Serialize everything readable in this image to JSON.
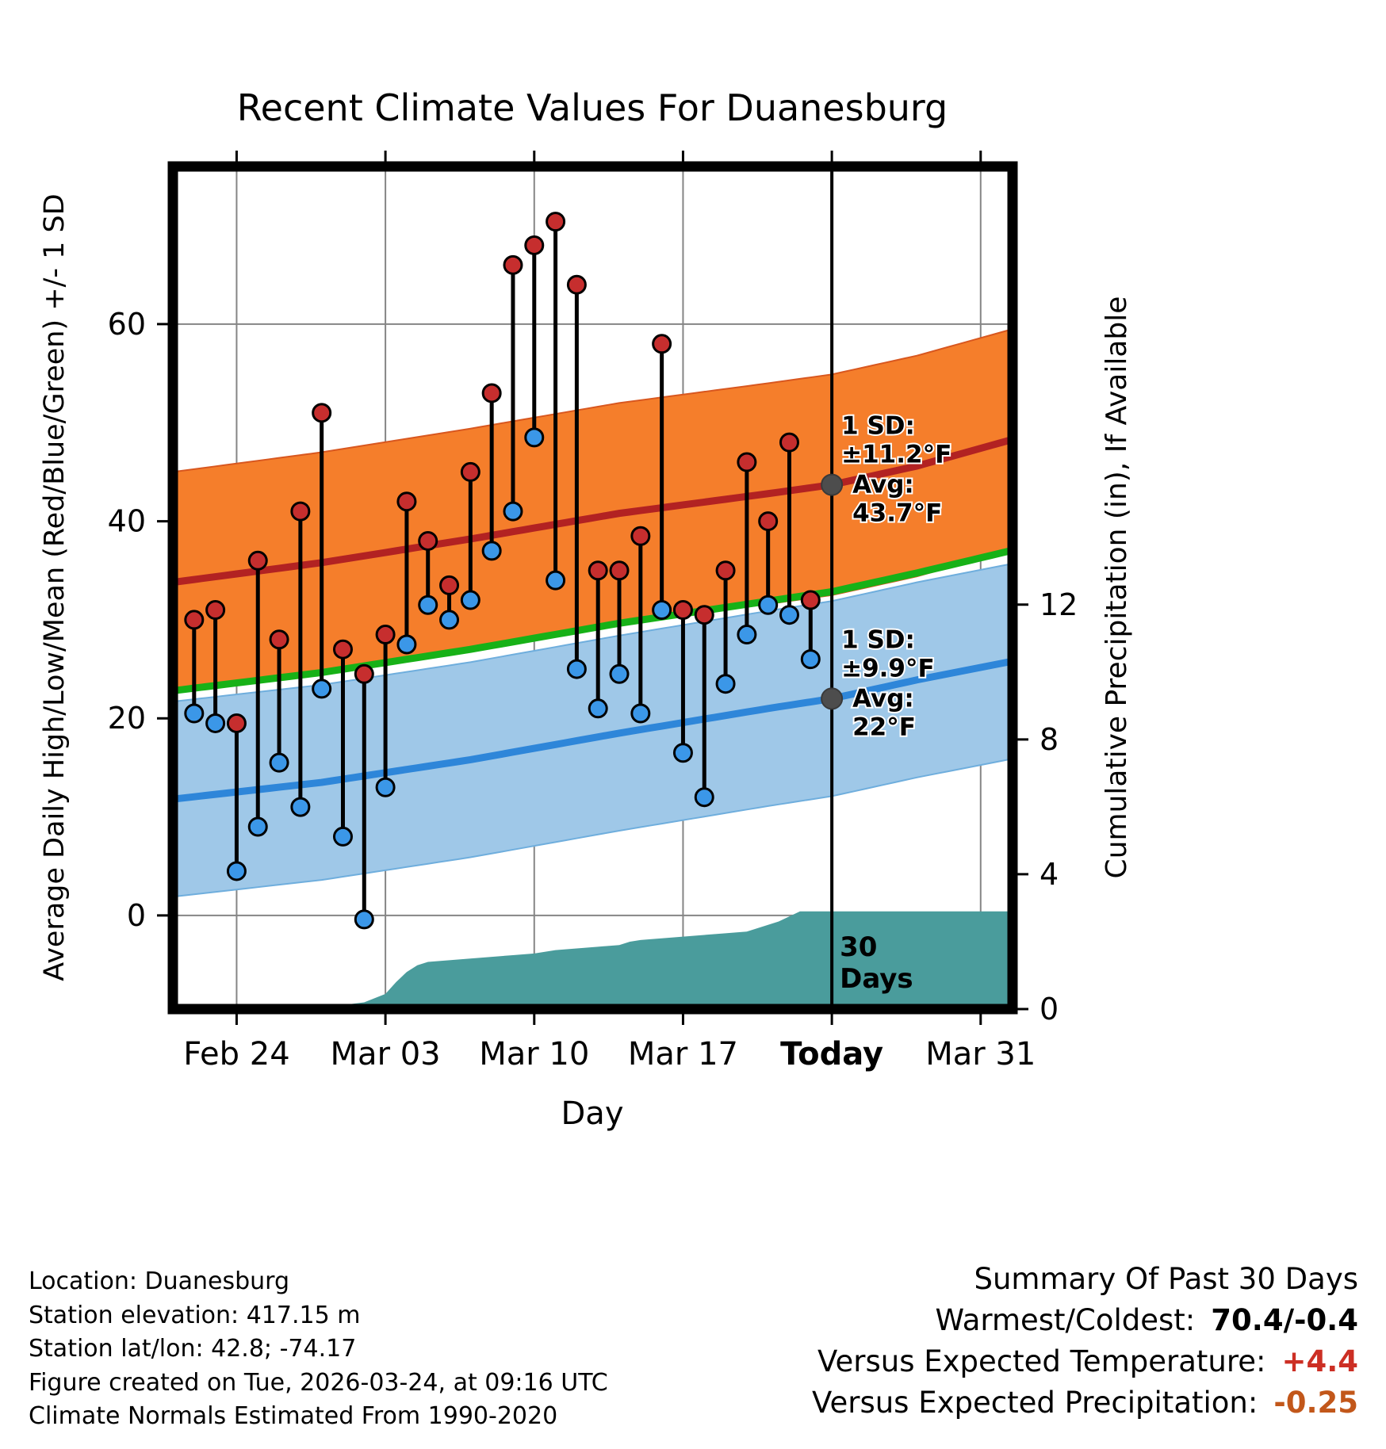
{
  "chart_data": {
    "type": "line",
    "title": "Recent Climate Values For Duanesburg",
    "xlabel": "Day",
    "ylabel_left": "Average Daily High/Low/Mean (Red/Blue/Green) +/- 1 SD",
    "ylabel_right": "Cumulative Precipitation (in), If Available",
    "x_domain": [
      0,
      39.5
    ],
    "x_ticks": [
      "Feb 24",
      "Mar 03",
      "Mar 10",
      "Mar 17",
      "Today",
      "Mar 31"
    ],
    "x_tick_days": [
      3,
      10,
      17,
      24,
      31,
      38
    ],
    "today_day": 31,
    "ylim_left": [
      -9.5,
      76
    ],
    "yticks_left": [
      0,
      20,
      40,
      60
    ],
    "ylim_right": [
      0,
      25
    ],
    "yticks_right": [
      0,
      4,
      8,
      12
    ],
    "daily": {
      "days": [
        1,
        2,
        3,
        4,
        5,
        6,
        7,
        8,
        9,
        10,
        11,
        12,
        13,
        14,
        15,
        16,
        17,
        18,
        19,
        20,
        21,
        22,
        23,
        24,
        25,
        26,
        27,
        28,
        29,
        30
      ],
      "high": [
        30,
        31,
        19.5,
        36,
        28,
        41,
        51,
        27,
        24.5,
        28.5,
        42,
        38,
        33.5,
        45,
        53,
        66,
        68,
        70.4,
        64,
        35,
        35,
        38.5,
        58,
        31,
        30.5,
        35,
        46,
        40,
        48,
        32
      ],
      "low": [
        20.5,
        19.5,
        4.5,
        9,
        15.5,
        11,
        23,
        8,
        -0.4,
        13,
        27.5,
        31.5,
        30,
        32,
        37,
        41,
        48.5,
        34,
        25,
        21,
        24.5,
        20.5,
        31,
        16.5,
        12,
        23.5,
        28.5,
        31.5,
        30.5,
        26
      ]
    },
    "normals": {
      "days": [
        0,
        7,
        14,
        21,
        28,
        31,
        35,
        39.5
      ],
      "high_avg": [
        33.8,
        35.8,
        38.2,
        40.8,
        42.8,
        43.7,
        45.6,
        48.3
      ],
      "high_sd": 11.2,
      "low_avg": [
        11.8,
        13.5,
        15.8,
        18.5,
        21.0,
        22.0,
        23.9,
        25.8
      ],
      "low_sd": 9.9
    },
    "precip": {
      "days": [
        0,
        2,
        3,
        4,
        5,
        6,
        7,
        8,
        9,
        10,
        10.5,
        11,
        11.5,
        12,
        13,
        14,
        15,
        16,
        17,
        18,
        19,
        20,
        21,
        21.5,
        22,
        23,
        24,
        25,
        26,
        27,
        27.5,
        28,
        28.5,
        29,
        29.5,
        30,
        39.5
      ],
      "values": [
        0,
        0,
        0.02,
        0.04,
        0.06,
        0.08,
        0.1,
        0.12,
        0.2,
        0.45,
        0.8,
        1.1,
        1.3,
        1.4,
        1.45,
        1.5,
        1.55,
        1.6,
        1.65,
        1.75,
        1.8,
        1.85,
        1.9,
        2.0,
        2.05,
        2.1,
        2.15,
        2.2,
        2.25,
        2.3,
        2.4,
        2.5,
        2.6,
        2.75,
        2.9,
        2.9,
        2.9
      ]
    }
  },
  "annotations": {
    "high": {
      "lines": [
        "1 SD:",
        "±11.2°F",
        "Avg:",
        "43.7°F"
      ],
      "avg": 43.7
    },
    "low": {
      "lines": [
        "1 SD:",
        "±9.9°F",
        "Avg:",
        "22°F"
      ],
      "avg": 22
    },
    "today": {
      "lines": [
        "30",
        "Days"
      ]
    }
  },
  "colors": {
    "high_band": "#F57E2B",
    "high_line": "#B22222",
    "high_dot": "#C62E2E",
    "low_band": "#9FC8E8",
    "low_line": "#2E86D9",
    "low_dot": "#3B97E8",
    "mean_line": "#17B117",
    "precip_fill": "#4A9C9C",
    "annotation_text": "#8A8A8A",
    "avg_dot": "#4D4D4D",
    "grid": "#858585",
    "today_line": "#000000"
  },
  "footer": {
    "left_lines": [
      "Location: Duanesburg",
      "Station elevation: 417.15 m",
      "Station lat/lon: 42.8; -74.17",
      "Figure created on Tue, 2026-03-24, at 09:16 UTC",
      "Climate Normals Estimated From 1990-2020"
    ],
    "summary": {
      "title": "Summary Of Past 30 Days",
      "rows": [
        {
          "label": "Warmest/Coldest:",
          "value": "70.4/-0.4",
          "color": "#000000"
        },
        {
          "label": "Versus Expected Temperature:",
          "value": "+4.4",
          "color": "#CC2F24"
        },
        {
          "label": "Versus Expected Precipitation:",
          "value": "-0.25",
          "color": "#C2571A"
        }
      ]
    }
  }
}
